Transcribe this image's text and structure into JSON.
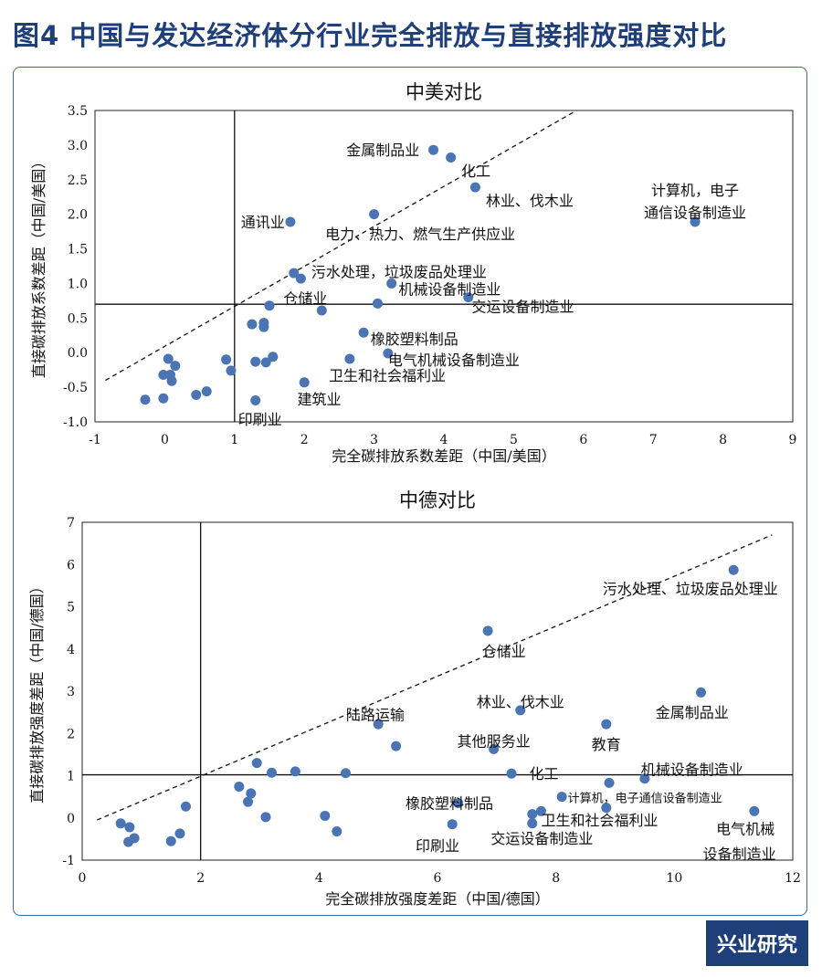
{
  "figure_title": "图4 中国与发达经济体分行业完全排放与直接排放强度对比",
  "brand": "兴业研究",
  "colors": {
    "point": "#4a74b4",
    "title": "#1f3f7a",
    "frame": "#3a6aa8"
  },
  "chart_data": [
    {
      "type": "scatter",
      "title": "中美对比",
      "xlabel": "完全碳排放系数差距（中国/美国）",
      "ylabel": "直接碳排放系数差距（中国/美国）",
      "xlim": [
        -1,
        9
      ],
      "ylim": [
        -1.0,
        3.5
      ],
      "xticks": [
        "-1",
        "0",
        "1",
        "2",
        "3",
        "4",
        "5",
        "6",
        "7",
        "8",
        "9"
      ],
      "yticks": [
        "-1.0",
        "-0.5",
        "0.0",
        "0.5",
        "1.0",
        "1.5",
        "2.0",
        "2.5",
        "3.0",
        "3.5"
      ],
      "ref_x": 1,
      "ref_y": 0.7,
      "diag": [
        [
          -0.85,
          -0.4
        ],
        [
          5.9,
          3.5
        ]
      ],
      "points": [
        {
          "x": 3.85,
          "y": 2.93
        },
        {
          "x": 4.1,
          "y": 2.82
        },
        {
          "x": 4.45,
          "y": 2.39
        },
        {
          "x": 7.6,
          "y": 1.89
        },
        {
          "x": 1.8,
          "y": 1.89
        },
        {
          "x": 3.0,
          "y": 2.0
        },
        {
          "x": 1.85,
          "y": 1.15
        },
        {
          "x": 1.95,
          "y": 1.07
        },
        {
          "x": 3.25,
          "y": 1.0
        },
        {
          "x": 4.35,
          "y": 0.8
        },
        {
          "x": 3.05,
          "y": 0.71
        },
        {
          "x": 1.5,
          "y": 0.68
        },
        {
          "x": 2.25,
          "y": 0.61
        },
        {
          "x": 1.25,
          "y": 0.41
        },
        {
          "x": 1.42,
          "y": 0.43
        },
        {
          "x": 1.42,
          "y": 0.37
        },
        {
          "x": 2.85,
          "y": 0.29
        },
        {
          "x": 3.2,
          "y": -0.01
        },
        {
          "x": 2.65,
          "y": -0.09
        },
        {
          "x": 1.55,
          "y": -0.06
        },
        {
          "x": 1.3,
          "y": -0.13
        },
        {
          "x": 1.45,
          "y": -0.14
        },
        {
          "x": 0.88,
          "y": -0.1
        },
        {
          "x": 0.95,
          "y": -0.26
        },
        {
          "x": 0.05,
          "y": -0.09
        },
        {
          "x": 0.15,
          "y": -0.19
        },
        {
          "x": -0.02,
          "y": -0.32
        },
        {
          "x": 0.08,
          "y": -0.32
        },
        {
          "x": 0.1,
          "y": -0.41
        },
        {
          "x": 2.0,
          "y": -0.43
        },
        {
          "x": 0.45,
          "y": -0.61
        },
        {
          "x": 0.6,
          "y": -0.56
        },
        {
          "x": -0.02,
          "y": -0.66
        },
        {
          "x": -0.28,
          "y": -0.68
        },
        {
          "x": 1.3,
          "y": -0.69
        }
      ],
      "labels": [
        {
          "text": "金属制品业",
          "x": 3.65,
          "y": 2.93,
          "anchor": "end"
        },
        {
          "text": "化工",
          "x": 4.25,
          "y": 2.63,
          "anchor": "start"
        },
        {
          "text": "林业、伐木业",
          "x": 4.6,
          "y": 2.2,
          "anchor": "start"
        },
        {
          "text": "计算机，电子",
          "x": 7.6,
          "y": 2.35,
          "anchor": "middle"
        },
        {
          "text": "通信设备制造业",
          "x": 7.6,
          "y": 2.03,
          "anchor": "middle"
        },
        {
          "text": "通讯业",
          "x": 1.72,
          "y": 1.89,
          "anchor": "end"
        },
        {
          "text": "电力、热力、燃气生产供应业",
          "x": 2.3,
          "y": 1.72,
          "anchor": "start"
        },
        {
          "text": "污水处理，垃圾废品处理业",
          "x": 2.1,
          "y": 1.17,
          "anchor": "start"
        },
        {
          "text": "机械设备制造业",
          "x": 3.35,
          "y": 0.92,
          "anchor": "start"
        },
        {
          "text": "交运设备制造业",
          "x": 4.4,
          "y": 0.67,
          "anchor": "start"
        },
        {
          "text": "仓储业",
          "x": 1.7,
          "y": 0.79,
          "anchor": "start"
        },
        {
          "text": "橡胶塑料制品",
          "x": 2.95,
          "y": 0.2,
          "anchor": "start"
        },
        {
          "text": "电气机械设备制造业",
          "x": 3.2,
          "y": -0.1,
          "anchor": "start"
        },
        {
          "text": "卫生和社会福利业",
          "x": 2.35,
          "y": -0.33,
          "anchor": "start"
        },
        {
          "text": "建筑业",
          "x": 1.9,
          "y": -0.67,
          "anchor": "start"
        },
        {
          "text": "印刷业",
          "x": 1.05,
          "y": -0.96,
          "anchor": "start"
        }
      ]
    },
    {
      "type": "scatter",
      "title": "中德对比",
      "xlabel": "完全碳排放强度差距（中国/德国）",
      "ylabel": "直接碳排放强度差距（中国/德国）",
      "xlim": [
        0,
        12
      ],
      "ylim": [
        -1,
        7
      ],
      "xticks": [
        "0",
        "2",
        "4",
        "6",
        "8",
        "10",
        "12"
      ],
      "yticks": [
        "-1",
        "0",
        "1",
        "2",
        "3",
        "4",
        "5",
        "6",
        "7"
      ],
      "ref_x": 2,
      "ref_y": 1.02,
      "diag": [
        [
          0.25,
          -0.05
        ],
        [
          11.65,
          6.7
        ]
      ],
      "points": [
        {
          "x": 11.0,
          "y": 5.87
        },
        {
          "x": 6.85,
          "y": 4.43
        },
        {
          "x": 10.45,
          "y": 2.97
        },
        {
          "x": 7.4,
          "y": 2.55
        },
        {
          "x": 8.85,
          "y": 2.22
        },
        {
          "x": 5.0,
          "y": 2.22
        },
        {
          "x": 5.3,
          "y": 1.7
        },
        {
          "x": 6.95,
          "y": 1.63
        },
        {
          "x": 7.25,
          "y": 1.05
        },
        {
          "x": 9.5,
          "y": 0.93
        },
        {
          "x": 8.9,
          "y": 0.83
        },
        {
          "x": 8.1,
          "y": 0.5
        },
        {
          "x": 8.85,
          "y": 0.24
        },
        {
          "x": 6.35,
          "y": 0.35
        },
        {
          "x": 7.75,
          "y": 0.16
        },
        {
          "x": 7.6,
          "y": 0.09
        },
        {
          "x": 7.6,
          "y": -0.13
        },
        {
          "x": 6.25,
          "y": -0.15
        },
        {
          "x": 11.35,
          "y": 0.16
        },
        {
          "x": 2.95,
          "y": 1.3
        },
        {
          "x": 3.2,
          "y": 1.07
        },
        {
          "x": 3.6,
          "y": 1.1
        },
        {
          "x": 4.45,
          "y": 1.06
        },
        {
          "x": 2.65,
          "y": 0.74
        },
        {
          "x": 2.85,
          "y": 0.58
        },
        {
          "x": 2.8,
          "y": 0.38
        },
        {
          "x": 1.75,
          "y": 0.27
        },
        {
          "x": 3.1,
          "y": 0.02
        },
        {
          "x": 4.1,
          "y": 0.05
        },
        {
          "x": 4.3,
          "y": -0.32
        },
        {
          "x": 0.65,
          "y": -0.13
        },
        {
          "x": 0.8,
          "y": -0.22
        },
        {
          "x": 0.88,
          "y": -0.48
        },
        {
          "x": 0.78,
          "y": -0.57
        },
        {
          "x": 1.5,
          "y": -0.55
        },
        {
          "x": 1.65,
          "y": -0.37
        }
      ],
      "labels": [
        {
          "text": "污水处理、垃圾废品处理业",
          "x": 11.75,
          "y": 5.43,
          "anchor": "end"
        },
        {
          "text": "仓储业",
          "x": 6.75,
          "y": 3.95,
          "anchor": "start"
        },
        {
          "text": "金属制品业",
          "x": 10.3,
          "y": 2.5,
          "anchor": "middle"
        },
        {
          "text": "林业、伐木业",
          "x": 7.4,
          "y": 2.75,
          "anchor": "middle"
        },
        {
          "text": "教育",
          "x": 8.85,
          "y": 1.75,
          "anchor": "middle"
        },
        {
          "text": "陆路运输",
          "x": 4.95,
          "y": 2.45,
          "anchor": "middle"
        },
        {
          "text": "其他服务业",
          "x": 6.95,
          "y": 1.82,
          "anchor": "middle"
        },
        {
          "text": "化工",
          "x": 7.55,
          "y": 1.05,
          "anchor": "start"
        },
        {
          "text": "机械设备制造业",
          "x": 10.3,
          "y": 1.15,
          "anchor": "middle"
        },
        {
          "text": "计算机，电子通信设备制造业",
          "x": 8.2,
          "y": 0.5,
          "anchor": "start",
          "small": true
        },
        {
          "text": "橡胶塑料制品",
          "x": 6.2,
          "y": 0.35,
          "anchor": "middle"
        },
        {
          "text": "卫生和社会福利业",
          "x": 7.75,
          "y": -0.05,
          "anchor": "start"
        },
        {
          "text": "电气机械",
          "x": 11.2,
          "y": -0.25,
          "anchor": "middle"
        },
        {
          "text": "设备制造业",
          "x": 11.1,
          "y": -0.85,
          "anchor": "middle"
        },
        {
          "text": "交运设备制造业",
          "x": 6.9,
          "y": -0.48,
          "anchor": "start"
        },
        {
          "text": "印刷业",
          "x": 6.0,
          "y": -0.65,
          "anchor": "middle"
        }
      ]
    }
  ]
}
